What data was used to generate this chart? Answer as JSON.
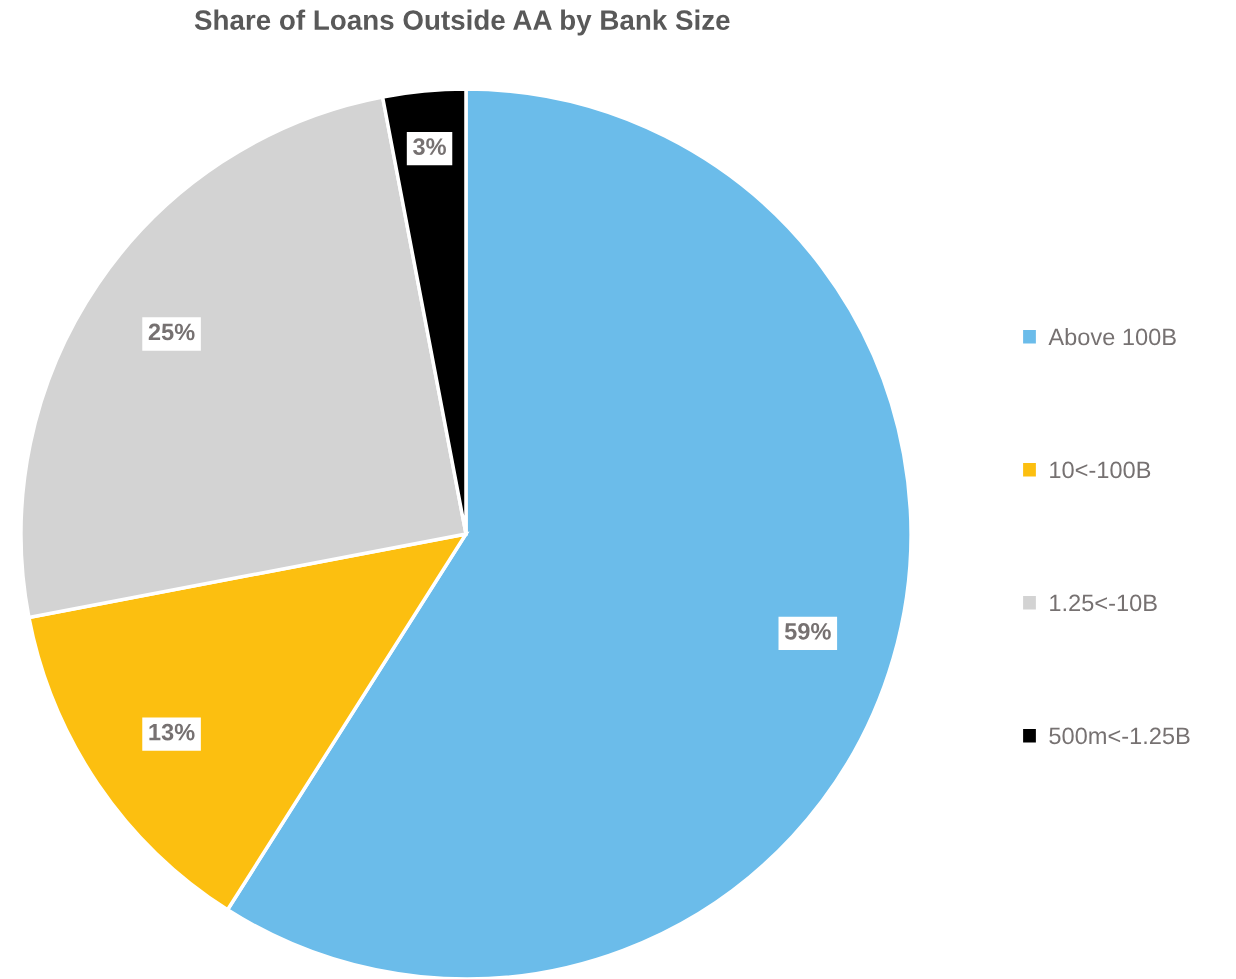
{
  "chart_data": {
    "type": "pie",
    "title": "Share of Loans Outside AA by Bank Size",
    "categories": [
      "Above 100B",
      "10<-100B",
      "1.25<-10B",
      "500m<-1.25B"
    ],
    "values": [
      59,
      13,
      25,
      3
    ],
    "colors": [
      "#6bbcea",
      "#fcbf10",
      "#d3d3d3",
      "#000000"
    ],
    "value_labels": [
      "59%",
      "13%",
      "25%",
      "3%"
    ],
    "legend": "right"
  }
}
